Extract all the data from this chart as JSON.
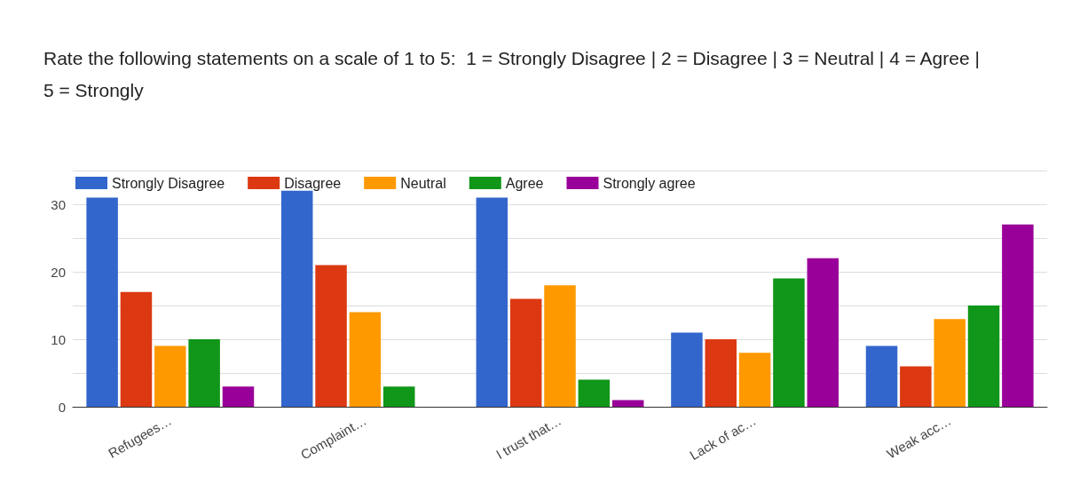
{
  "chart_data": {
    "type": "bar",
    "title": "Rate the following statements on a scale of 1 to 5:  1 = Strongly Disagree | 2 = Disagree | 3 = Neutral | 4 = Agree |\n5 = Strongly",
    "categories": [
      "Refugees…",
      "Complaint…",
      "I trust that…",
      "Lack of ac…",
      "Weak acc…"
    ],
    "series": [
      {
        "name": "Strongly Disagree",
        "color": "#3366cc",
        "values": [
          31,
          32,
          31,
          11,
          9
        ]
      },
      {
        "name": "Disagree",
        "color": "#dc3912",
        "values": [
          17,
          21,
          16,
          10,
          6
        ]
      },
      {
        "name": "Neutral",
        "color": "#ff9900",
        "values": [
          9,
          14,
          18,
          8,
          13
        ]
      },
      {
        "name": "Agree",
        "color": "#109618",
        "values": [
          10,
          3,
          4,
          19,
          15
        ]
      },
      {
        "name": "Strongly agree",
        "color": "#990099",
        "values": [
          3,
          0,
          1,
          22,
          27
        ]
      }
    ],
    "ylim": [
      0,
      35
    ],
    "yticks": [
      0,
      {
        "value": 5,
        "label": null
      },
      10,
      {
        "value": 15,
        "label": null
      },
      20,
      {
        "value": 25,
        "label": null
      },
      30,
      {
        "value": 35,
        "label": null
      }
    ],
    "grid": true,
    "legend": "top left"
  }
}
